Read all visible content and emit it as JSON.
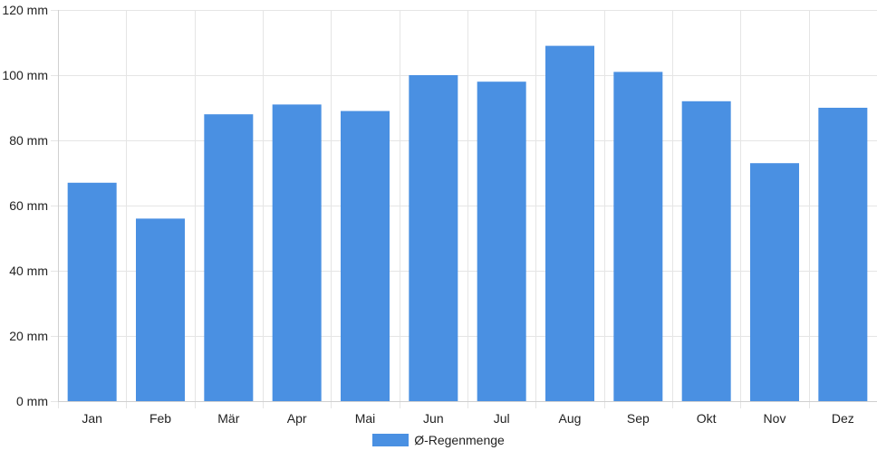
{
  "chart_data": {
    "type": "bar",
    "categories": [
      "Jan",
      "Feb",
      "Mär",
      "Apr",
      "Mai",
      "Jun",
      "Jul",
      "Aug",
      "Sep",
      "Okt",
      "Nov",
      "Dez"
    ],
    "series": [
      {
        "name": "Ø-Regenmenge",
        "values": [
          67,
          56,
          88,
          91,
          89,
          100,
          98,
          109,
          101,
          92,
          73,
          90
        ]
      }
    ],
    "ylim": [
      0,
      120
    ],
    "y_ticks": [
      0,
      20,
      40,
      60,
      80,
      100,
      120
    ],
    "y_tick_suffix": " mm",
    "grid": true,
    "legend_position": "bottom",
    "colors": {
      "bar": "#4a90e2",
      "grid": "#e5e5e5",
      "axis": "#d0d0d0"
    }
  }
}
